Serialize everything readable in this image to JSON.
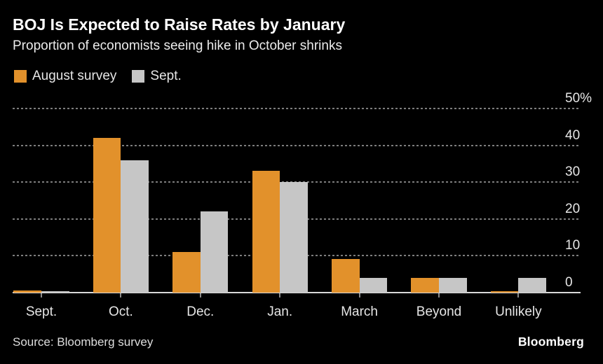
{
  "header": {
    "title": "BOJ Is Expected to Raise Rates by January",
    "subtitle": "Proportion of economists seeing hike in October shrinks"
  },
  "legend": {
    "items": [
      {
        "label": "August survey",
        "color": "#e2912b"
      },
      {
        "label": "Sept.",
        "color": "#c6c6c6"
      }
    ]
  },
  "chart_data": {
    "type": "bar",
    "categories": [
      "Sept.",
      "Oct.",
      "Dec.",
      "Jan.",
      "March",
      "Beyond",
      "Unlikely"
    ],
    "series": [
      {
        "name": "August survey",
        "color": "#e2912b",
        "values": [
          0.4,
          42,
          11,
          33,
          9,
          4,
          0.3
        ]
      },
      {
        "name": "Sept.",
        "color": "#c6c6c6",
        "values": [
          0.2,
          36,
          22,
          30,
          4,
          4,
          4
        ]
      }
    ],
    "title": "BOJ Is Expected to Raise Rates by January",
    "subtitle": "Proportion of economists seeing hike in October shrinks",
    "xlabel": "",
    "ylabel": "%",
    "ylim": [
      0,
      50
    ],
    "yticks": [
      0,
      10,
      20,
      30,
      40,
      50
    ],
    "ytick_labels": [
      "0",
      "10",
      "20",
      "30",
      "40",
      "50%"
    ],
    "grid": "horizontal-dotted",
    "legend_position": "top-left",
    "y_axis_side": "right"
  },
  "footer": {
    "source": "Source: Bloomberg survey",
    "logo": "Bloomberg"
  },
  "colors": {
    "background": "#000000",
    "title_text": "#ffffff",
    "subtitle_text": "#ececec",
    "axis_text": "#e6e6e6",
    "gridline": "#7d7d7d",
    "baseline": "#d9d9d9",
    "tick": "#8a8a8a",
    "series_august": "#e2912b",
    "series_september": "#c6c6c6"
  }
}
